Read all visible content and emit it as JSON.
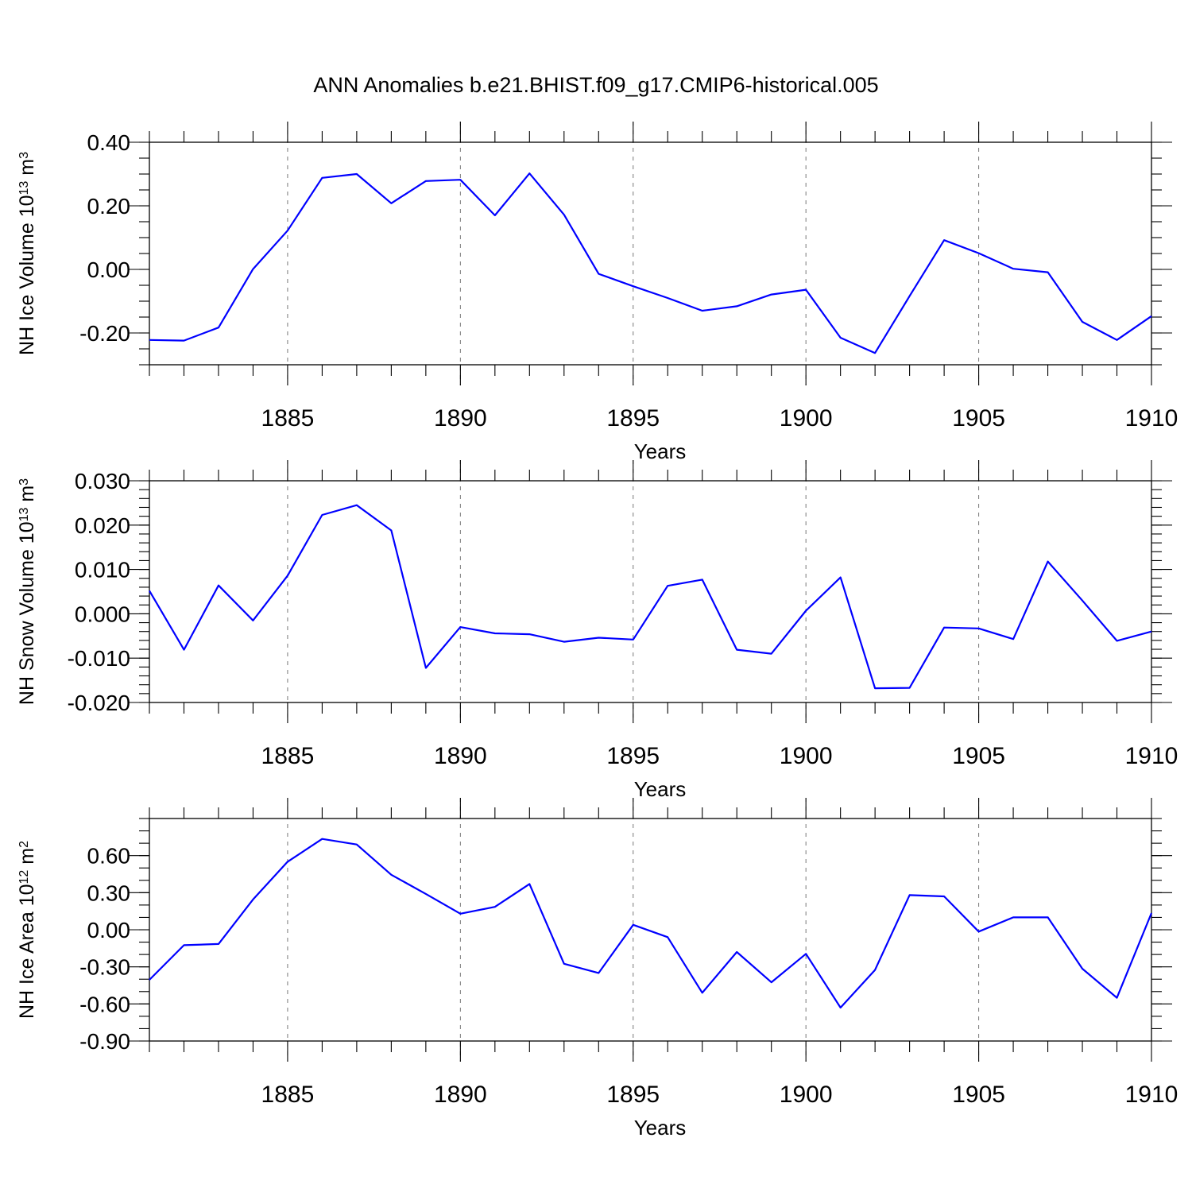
{
  "title": "ANN Anomalies b.e21.BHIST.f09_g17.CMIP6-historical.005",
  "colors": {
    "series": "#0000ff",
    "grid": "#777777",
    "axes": "#000000"
  },
  "chart_data": [
    {
      "type": "line",
      "ylabel_main": "NH Ice Volume 10",
      "ylabel_exp": "13",
      "ylabel_unit": " m",
      "ylabel_unit_exp": "3",
      "xlabel": "Years",
      "xlim": [
        1881,
        1910
      ],
      "ylim": [
        -0.3,
        0.4
      ],
      "yticks": [
        -0.2,
        0.0,
        0.2,
        0.4
      ],
      "ytick_labels": [
        "-0.20",
        "0.00",
        "0.20",
        "0.40"
      ],
      "yminor_step": 0.05,
      "xticks": [
        1885,
        1890,
        1895,
        1900,
        1905,
        1910
      ],
      "xtick_labels": [
        "1885",
        "1890",
        "1895",
        "1900",
        "1905",
        "1910"
      ],
      "grid": "vertical dashed at major x ticks",
      "x": [
        1881,
        1882,
        1883,
        1884,
        1885,
        1886,
        1887,
        1888,
        1889,
        1890,
        1891,
        1892,
        1893,
        1894,
        1895,
        1896,
        1897,
        1898,
        1899,
        1900,
        1901,
        1902,
        1903,
        1904,
        1905,
        1906,
        1907,
        1908,
        1909,
        1910
      ],
      "values": [
        -0.222,
        -0.224,
        -0.183,
        0.001,
        0.122,
        0.288,
        0.3,
        0.208,
        0.278,
        0.282,
        0.17,
        0.302,
        0.172,
        -0.014,
        -0.053,
        -0.09,
        -0.13,
        -0.116,
        -0.079,
        -0.064,
        -0.215,
        -0.263,
        -0.084,
        0.092,
        0.051,
        0.002,
        -0.009,
        -0.165,
        -0.222,
        -0.147
      ]
    },
    {
      "type": "line",
      "ylabel_main": "NH Snow Volume 10",
      "ylabel_exp": "13",
      "ylabel_unit": " m",
      "ylabel_unit_exp": "3",
      "xlabel": "Years",
      "xlim": [
        1881,
        1910
      ],
      "ylim": [
        -0.02,
        0.03
      ],
      "yticks": [
        -0.02,
        -0.01,
        0.0,
        0.01,
        0.02,
        0.03
      ],
      "ytick_labels": [
        "-0.020",
        "-0.010",
        "0.000",
        "0.010",
        "0.020",
        "0.030"
      ],
      "yminor_step": 0.002,
      "xticks": [
        1885,
        1890,
        1895,
        1900,
        1905,
        1910
      ],
      "xtick_labels": [
        "1885",
        "1890",
        "1895",
        "1900",
        "1905",
        "1910"
      ],
      "grid": "vertical dashed at major x ticks",
      "x": [
        1881,
        1882,
        1883,
        1884,
        1885,
        1886,
        1887,
        1888,
        1889,
        1890,
        1891,
        1892,
        1893,
        1894,
        1895,
        1896,
        1897,
        1898,
        1899,
        1900,
        1901,
        1902,
        1903,
        1904,
        1905,
        1906,
        1907,
        1908,
        1909,
        1910
      ],
      "values": [
        0.0052,
        -0.0081,
        0.0064,
        -0.0015,
        0.0086,
        0.0223,
        0.0245,
        0.0188,
        -0.0122,
        -0.003,
        -0.0044,
        -0.0046,
        -0.0063,
        -0.0054,
        -0.0058,
        0.0063,
        0.0077,
        -0.0081,
        -0.009,
        0.0007,
        0.0082,
        -0.0168,
        -0.0167,
        -0.0031,
        -0.0033,
        -0.0057,
        0.0118,
        0.003,
        -0.0061,
        -0.004
      ]
    },
    {
      "type": "line",
      "ylabel_main": "NH Ice Area 10",
      "ylabel_exp": "12",
      "ylabel_unit": " m",
      "ylabel_unit_exp": "2",
      "xlabel": "Years",
      "xlim": [
        1881,
        1910
      ],
      "ylim": [
        -0.9,
        0.9
      ],
      "yticks": [
        -0.9,
        -0.6,
        -0.3,
        0.0,
        0.3,
        0.6
      ],
      "ytick_labels": [
        "-0.90",
        "-0.60",
        "-0.30",
        "0.00",
        "0.30",
        "0.60"
      ],
      "yminor_step": 0.1,
      "xticks": [
        1885,
        1890,
        1895,
        1900,
        1905,
        1910
      ],
      "xtick_labels": [
        "1885",
        "1890",
        "1895",
        "1900",
        "1905",
        "1910"
      ],
      "grid": "vertical dashed at major x ticks",
      "x": [
        1881,
        1882,
        1883,
        1884,
        1885,
        1886,
        1887,
        1888,
        1889,
        1890,
        1891,
        1892,
        1893,
        1894,
        1895,
        1896,
        1897,
        1898,
        1899,
        1900,
        1901,
        1902,
        1903,
        1904,
        1905,
        1906,
        1907,
        1908,
        1909,
        1910
      ],
      "values": [
        -0.405,
        -0.125,
        -0.115,
        0.245,
        0.55,
        0.735,
        0.69,
        0.445,
        0.29,
        0.13,
        0.185,
        0.37,
        -0.275,
        -0.35,
        0.04,
        -0.06,
        -0.51,
        -0.18,
        -0.425,
        -0.195,
        -0.63,
        -0.325,
        0.28,
        0.27,
        -0.015,
        0.1,
        0.1,
        -0.315,
        -0.55,
        0.135
      ]
    }
  ]
}
